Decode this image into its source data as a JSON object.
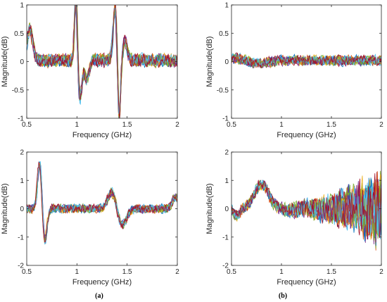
{
  "chart_data": [
    {
      "id": "top-left",
      "type": "line",
      "xlabel": "Frequency (GHz)",
      "ylabel": "Magnitude(dB)",
      "xlim": [
        0.5,
        2
      ],
      "ylim": [
        -1,
        1
      ],
      "xticks": [
        "0.5",
        "1",
        "1.5",
        "2"
      ],
      "yticks": [
        "-1",
        "-0.5",
        "0",
        "0.5",
        "1"
      ],
      "grid": false,
      "series_count": 14,
      "features": [
        {
          "x": 0.53,
          "amplitude": 0.5,
          "width": 0.04
        },
        {
          "x": 0.99,
          "amplitude": 1.1,
          "width": 0.02
        },
        {
          "x": 1.03,
          "amplitude": -0.6,
          "width": 0.03
        },
        {
          "x": 1.1,
          "amplitude": -0.3,
          "width": 0.03
        },
        {
          "x": 1.38,
          "amplitude": 0.8,
          "width": 0.03
        },
        {
          "x": 1.42,
          "amplitude": -1.0,
          "width": 0.02
        },
        {
          "x": 1.48,
          "amplitude": 0.3,
          "width": 0.03
        }
      ],
      "baseline": 0.02,
      "noise": 0.09
    },
    {
      "id": "top-right",
      "type": "line",
      "xlabel": "Frequency (GHz)",
      "ylabel": "Magnitude(dB)",
      "xlim": [
        0.5,
        2
      ],
      "ylim": [
        -1,
        1
      ],
      "xticks": [
        "0.5",
        "1",
        "1.5",
        "2"
      ],
      "yticks": [
        "-1",
        "-0.5",
        "0",
        "0.5",
        "1"
      ],
      "grid": false,
      "series_count": 14,
      "features": [
        {
          "x": 0.55,
          "amplitude": 0.05,
          "width": 0.08
        },
        {
          "x": 0.78,
          "amplitude": -0.06,
          "width": 0.12
        }
      ],
      "baseline": 0.02,
      "noise": 0.07
    },
    {
      "id": "bottom-left",
      "type": "line",
      "xlabel": "Frequency (GHz)",
      "ylabel": "Magnitude(dB)",
      "xlim": [
        0.5,
        2
      ],
      "ylim": [
        -2,
        2
      ],
      "xticks": [
        "0.5",
        "1",
        "1.5",
        "2"
      ],
      "yticks": [
        "-2",
        "-1",
        "0",
        "1",
        "2"
      ],
      "grid": false,
      "series_count": 14,
      "features": [
        {
          "x": 0.63,
          "amplitude": 1.6,
          "width": 0.03
        },
        {
          "x": 0.68,
          "amplitude": -1.2,
          "width": 0.03
        },
        {
          "x": 1.35,
          "amplitude": 0.6,
          "width": 0.06
        },
        {
          "x": 1.45,
          "amplitude": -0.6,
          "width": 0.06
        },
        {
          "x": 1.98,
          "amplitude": 0.4,
          "width": 0.04
        }
      ],
      "baseline": 0.0,
      "noise": 0.12
    },
    {
      "id": "bottom-right",
      "type": "line",
      "xlabel": "Frequency (GHz)",
      "ylabel": "Magnitude(dB)",
      "xlim": [
        0.5,
        2
      ],
      "ylim": [
        -2,
        2
      ],
      "xticks": [
        "0.5",
        "1",
        "1.5",
        "2"
      ],
      "yticks": [
        "-2",
        "-1",
        "0",
        "1",
        "2"
      ],
      "grid": false,
      "series_count": 14,
      "features": [
        {
          "x": 0.8,
          "amplitude": 0.7,
          "width": 0.1
        },
        {
          "x": 0.55,
          "amplitude": -0.2,
          "width": 0.04
        },
        {
          "x": 1.1,
          "amplitude": -0.05,
          "width": 0.08
        }
      ],
      "baseline": 0.0,
      "noise": 0.15,
      "noise_growth": 1.3
    }
  ],
  "captions": [
    "(a)",
    "(b)"
  ],
  "series_colors": [
    "#0072BD",
    "#D95319",
    "#EDB120",
    "#7E2F8E",
    "#77AC30",
    "#4DBEEE",
    "#A2142F",
    "#0072BD",
    "#D95319",
    "#EDB120",
    "#7E2F8E",
    "#77AC30",
    "#4DBEEE",
    "#A2142F"
  ]
}
